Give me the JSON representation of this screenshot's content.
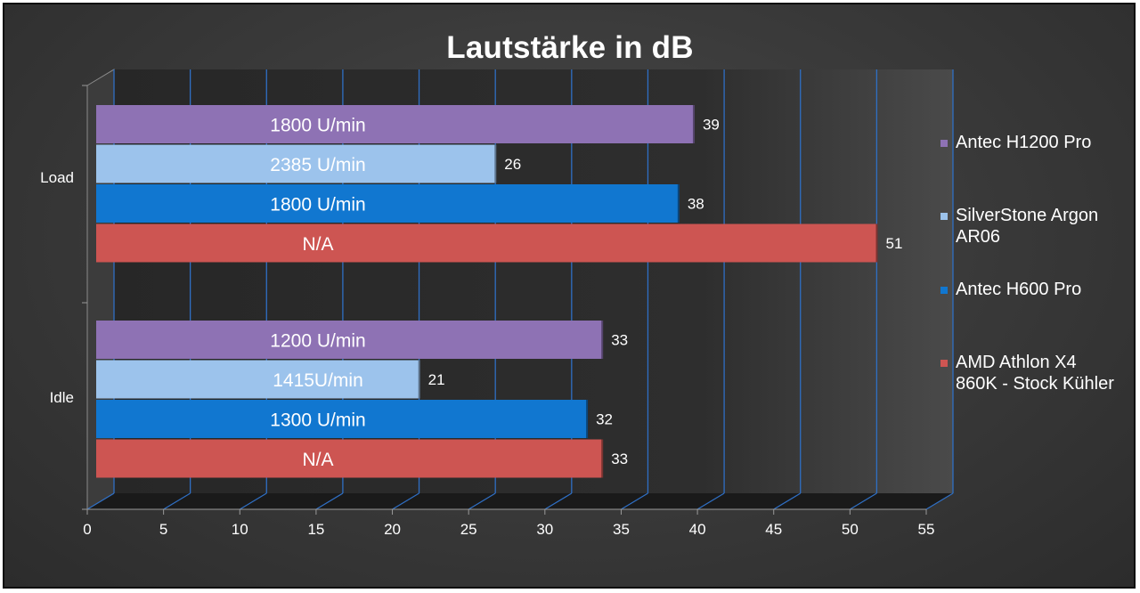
{
  "chart_data": {
    "type": "bar",
    "orientation": "horizontal",
    "title": "Lautstärke in dB",
    "xlabel": "",
    "ylabel": "",
    "xlim": [
      0,
      55
    ],
    "xticks": [
      "0",
      "5",
      "10",
      "15",
      "20",
      "25",
      "30",
      "35",
      "40",
      "45",
      "50",
      "55"
    ],
    "categories": [
      "Load",
      "Idle"
    ],
    "series": [
      {
        "name": "Antec H1200 Pro",
        "color": "#8e72b4",
        "values": [
          39,
          33
        ],
        "bar_labels": [
          "1800 U/min",
          "1200 U/min"
        ]
      },
      {
        "name": "SilverStone Argon AR06",
        "color": "#9cc3ec",
        "values": [
          26,
          21
        ],
        "bar_labels": [
          "2385 U/min",
          "1415U/min"
        ]
      },
      {
        "name": "Antec H600 Pro",
        "color": "#1177d0",
        "values": [
          38,
          32
        ],
        "bar_labels": [
          "1800 U/min",
          "1300 U/min"
        ]
      },
      {
        "name": "AMD Athlon X4 860K - Stock Kühler",
        "color": "#cd5552",
        "values": [
          51,
          33
        ],
        "bar_labels": [
          "N/A",
          "N/A"
        ]
      }
    ],
    "legend": [
      {
        "lines": [
          "Antec H1200 Pro"
        ],
        "color": "#8e72b4"
      },
      {
        "lines": [
          "SilverStone Argon",
          "AR06"
        ],
        "color": "#9cc3ec"
      },
      {
        "lines": [
          "Antec H600 Pro"
        ],
        "color": "#1177d0"
      },
      {
        "lines": [
          "AMD Athlon X4",
          "860K - Stock Kühler"
        ],
        "color": "#cd5552"
      }
    ],
    "legend_position": "right",
    "grid": true,
    "grid_color": "#2f6fc4",
    "colors": {
      "background": "#3a3a3a",
      "frame_border": "#0d0d0d",
      "text": "#ffffff"
    }
  }
}
